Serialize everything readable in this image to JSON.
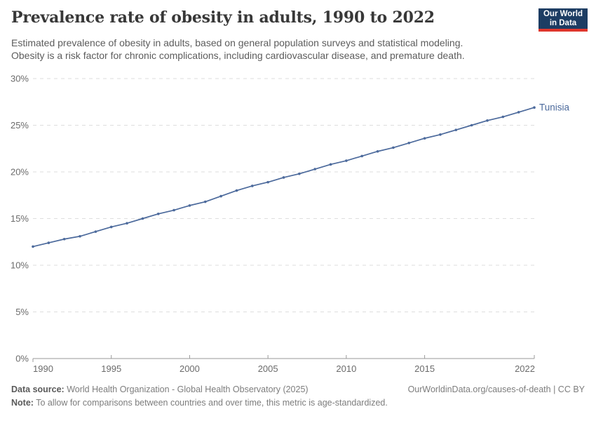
{
  "header": {
    "title": "Prevalence rate of obesity in adults, 1990 to 2022",
    "subtitle_line1": "Estimated prevalence of obesity in adults, based on general population surveys and statistical modeling.",
    "subtitle_line2": "Obesity is a risk factor for chronic complications, including cardiovascular disease, and premature death.",
    "logo": {
      "line1": "Our World",
      "line2": "in Data",
      "bg_color": "#1D3D63",
      "accent_color": "#E0362C"
    }
  },
  "chart_data": {
    "type": "line",
    "title": "Prevalence rate of obesity in adults, 1990 to 2022",
    "xlabel": "",
    "ylabel": "",
    "xlim": [
      1990,
      2022
    ],
    "ylim": [
      0,
      30
    ],
    "grid": "horizontal-dashed",
    "legend_position": "end-of-line-label",
    "xticks": [
      {
        "value": 1990,
        "label": "1990"
      },
      {
        "value": 1995,
        "label": "1995"
      },
      {
        "value": 2000,
        "label": "2000"
      },
      {
        "value": 2005,
        "label": "2005"
      },
      {
        "value": 2010,
        "label": "2010"
      },
      {
        "value": 2015,
        "label": "2015"
      },
      {
        "value": 2022,
        "label": "2022"
      }
    ],
    "yticks": [
      {
        "value": 0,
        "label": "0%"
      },
      {
        "value": 5,
        "label": "5%"
      },
      {
        "value": 10,
        "label": "10%"
      },
      {
        "value": 15,
        "label": "15%"
      },
      {
        "value": 20,
        "label": "20%"
      },
      {
        "value": 25,
        "label": "25%"
      },
      {
        "value": 30,
        "label": "30%"
      }
    ],
    "series": [
      {
        "name": "Tunisia",
        "color": "#4C6A9C",
        "x": [
          1990,
          1991,
          1992,
          1993,
          1994,
          1995,
          1996,
          1997,
          1998,
          1999,
          2000,
          2001,
          2002,
          2003,
          2004,
          2005,
          2006,
          2007,
          2008,
          2009,
          2010,
          2011,
          2012,
          2013,
          2014,
          2015,
          2016,
          2017,
          2018,
          2019,
          2020,
          2021,
          2022
        ],
        "values": [
          12.0,
          12.4,
          12.8,
          13.1,
          13.6,
          14.1,
          14.5,
          15.0,
          15.5,
          15.9,
          16.4,
          16.8,
          17.4,
          18.0,
          18.5,
          18.9,
          19.4,
          19.8,
          20.3,
          20.8,
          21.2,
          21.7,
          22.2,
          22.6,
          23.1,
          23.6,
          24.0,
          24.5,
          25.0,
          25.5,
          25.9,
          26.4,
          26.9
        ]
      }
    ]
  },
  "footer": {
    "datasource_label": "Data source:",
    "datasource_text": " World Health Organization - Global Health Observatory (2025)",
    "link_text": "OurWorldinData.org/causes-of-death | CC BY",
    "note_label": "Note:",
    "note_text": " To allow for comparisons between countries and over time, this metric is age-standardized."
  }
}
